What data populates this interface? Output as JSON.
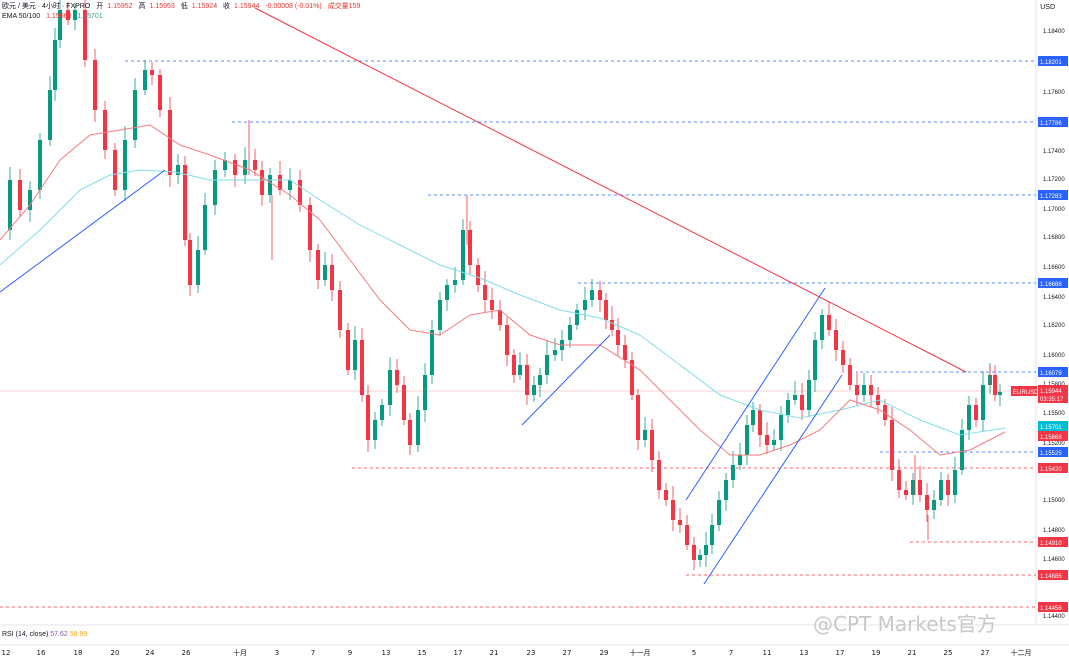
{
  "header": {
    "line1": {
      "symbol": "欧元 / 美元 · 4小时 · FXPRO",
      "open_label": "开",
      "open": "1.15952",
      "high_label": "高",
      "high": "1.15953",
      "low_label": "低",
      "low": "1.15924",
      "close_label": "收",
      "close": "1.15944",
      "change": "-0.00008 (-0.01%)",
      "volume": "成交量159"
    },
    "line2": {
      "ema_label": "EMA 50/100",
      "ema50": "1.15668",
      "ema100": "1.15701"
    }
  },
  "currency": "USD",
  "rsi": {
    "label": "RSI (14, close)",
    "value1": "57.62",
    "value2": "58.99"
  },
  "watermark": "@CPT Markets官方",
  "price_axis": {
    "ticks": [
      "1.18400",
      "1.18000",
      "1.17600",
      "1.17400",
      "1.17200",
      "1.17000",
      "1.16800",
      "1.16600",
      "1.16400",
      "1.16200",
      "1.16000",
      "1.15800",
      "1.15500",
      "1.15200",
      "1.15000",
      "1.14800",
      "1.14600",
      "1.14400"
    ],
    "labels": [
      {
        "text": "1.18201",
        "color": "#2962ff"
      },
      {
        "text": "1.17786",
        "color": "#2962ff"
      },
      {
        "text": "1.17283",
        "color": "#2962ff"
      },
      {
        "text": "1.16688",
        "color": "#2962ff"
      },
      {
        "text": "1.16078",
        "color": "#2962ff"
      },
      {
        "text": "EURUSD",
        "color": "#f23645"
      },
      {
        "text": "1.15944",
        "color": "#f23645"
      },
      {
        "text": "03:35:17",
        "color": "#f23645"
      },
      {
        "text": "1.15701",
        "color": "#00bcd4"
      },
      {
        "text": "1.15668",
        "color": "#f23645"
      },
      {
        "text": "1.15525",
        "color": "#2962ff"
      },
      {
        "text": "1.15420",
        "color": "#f23645"
      },
      {
        "text": "1.14910",
        "color": "#f23645"
      },
      {
        "text": "1.14685",
        "color": "#f23645"
      },
      {
        "text": "1.14458",
        "color": "#f23645"
      }
    ]
  },
  "time_axis": [
    "12",
    "16",
    "18",
    "20",
    "24",
    "26",
    "十月",
    "3",
    "7",
    "9",
    "13",
    "15",
    "17",
    "21",
    "23",
    "27",
    "29",
    "十一月",
    "5",
    "7",
    "11",
    "13",
    "17",
    "19",
    "21",
    "25",
    "27",
    "十二月"
  ],
  "colors": {
    "up": "#089981",
    "down": "#f23645",
    "trend_red": "#f23645",
    "trend_blue": "#2962ff",
    "ema50": "#f77c80",
    "ema100": "#80deea",
    "level_blue": "#2962ff",
    "level_red": "#f23645"
  }
}
